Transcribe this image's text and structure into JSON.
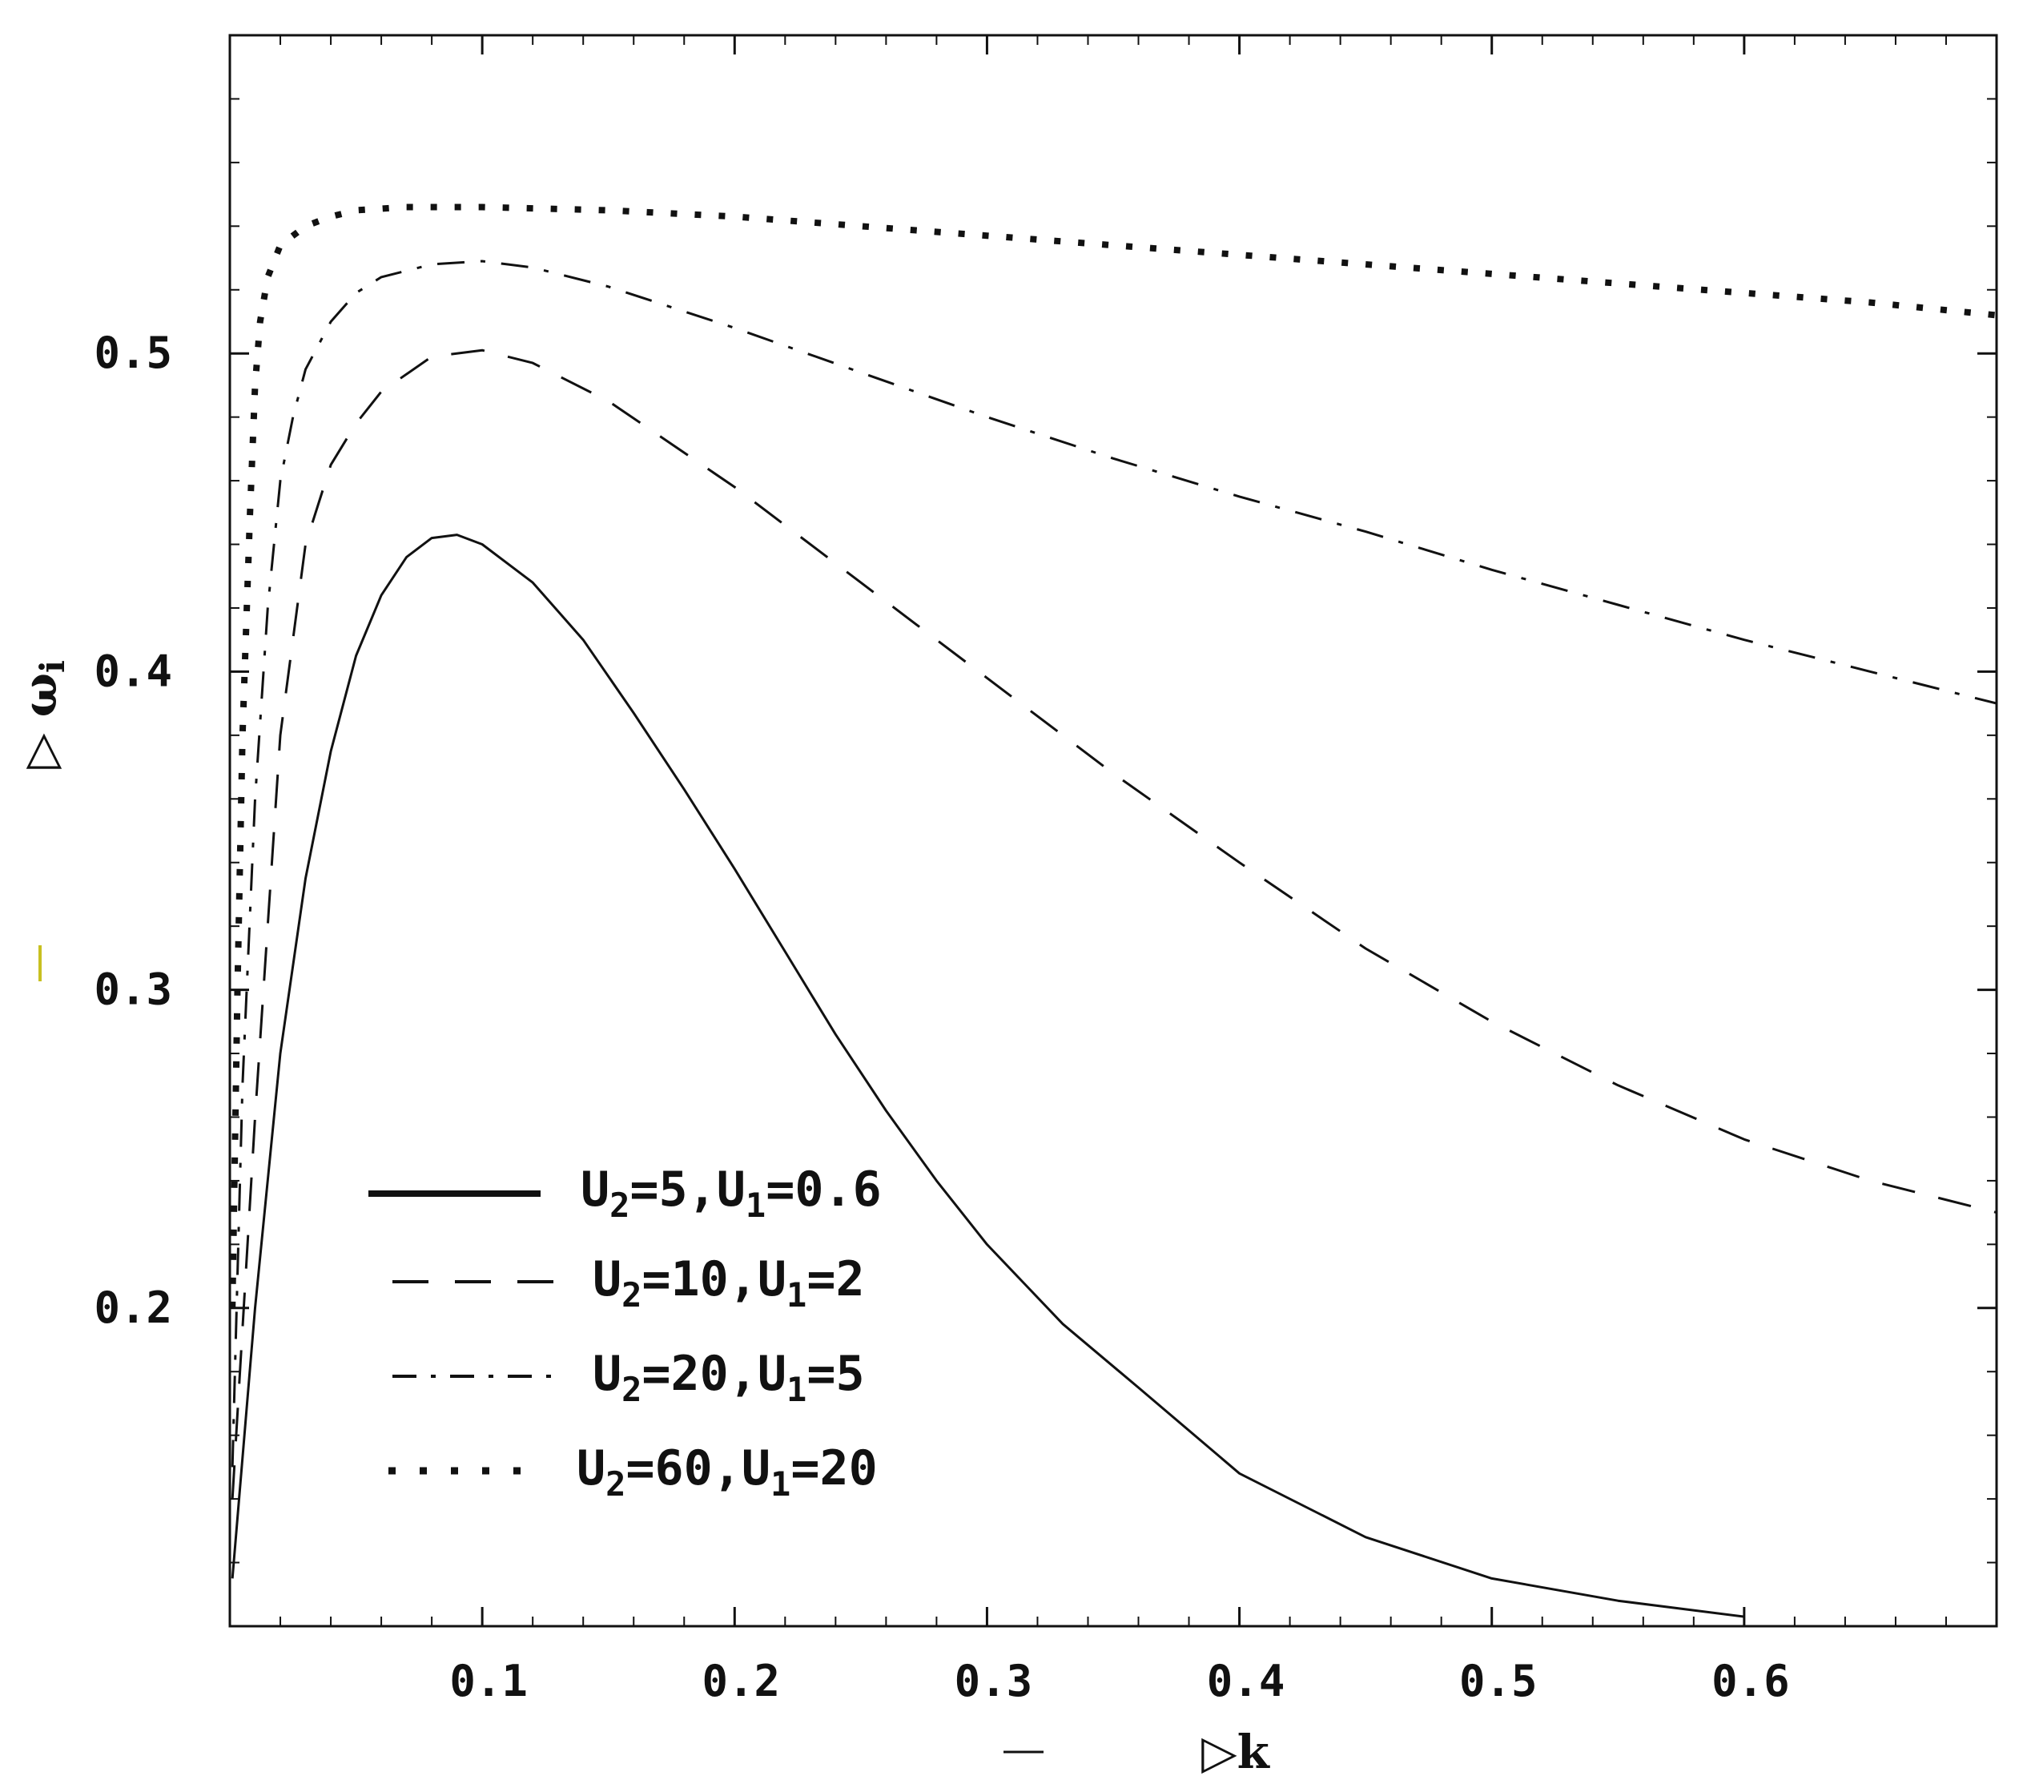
{
  "chart_data": {
    "type": "line",
    "title": "",
    "xlabel": "k",
    "ylabel": "ω",
    "ylabel_subscript": "i",
    "xlim": [
      0,
      0.7
    ],
    "ylim": [
      0.1,
      0.6
    ],
    "xticks": [
      {
        "value": 0.1,
        "label": "0.1"
      },
      {
        "value": 0.2,
        "label": "0.2"
      },
      {
        "value": 0.3,
        "label": "0.3"
      },
      {
        "value": 0.4,
        "label": "0.4"
      },
      {
        "value": 0.5,
        "label": "0.5"
      },
      {
        "value": 0.6,
        "label": "0.6"
      }
    ],
    "yticks": [
      {
        "value": 0.2,
        "label": "0.2"
      },
      {
        "value": 0.3,
        "label": "0.3"
      },
      {
        "value": 0.4,
        "label": "0.4"
      },
      {
        "value": 0.5,
        "label": "0.5"
      }
    ],
    "grid": false,
    "legend_position": "bottom-left",
    "series": [
      {
        "name": "U2=5,U1=0.6",
        "label_parts": {
          "a": "U",
          "a_sub": "2",
          "b": "=5,U",
          "b_sub": "1",
          "c": "=0.6"
        },
        "style": "solid",
        "x": [
          0.001,
          0.01,
          0.02,
          0.03,
          0.04,
          0.05,
          0.06,
          0.07,
          0.08,
          0.09,
          0.1,
          0.12,
          0.14,
          0.16,
          0.18,
          0.2,
          0.22,
          0.24,
          0.26,
          0.28,
          0.3,
          0.33,
          0.36,
          0.4,
          0.45,
          0.5,
          0.55,
          0.6
        ],
        "y": [
          0.115,
          0.2,
          0.28,
          0.335,
          0.375,
          0.405,
          0.424,
          0.436,
          0.442,
          0.443,
          0.44,
          0.428,
          0.41,
          0.387,
          0.363,
          0.338,
          0.312,
          0.286,
          0.262,
          0.24,
          0.22,
          0.195,
          0.175,
          0.148,
          0.128,
          0.115,
          0.108,
          0.103
        ]
      },
      {
        "name": "U2=10,U1=2",
        "label_parts": {
          "a": "U",
          "a_sub": "2",
          "b": "=10,U",
          "b_sub": "1",
          "c": "=2"
        },
        "style": "dashed",
        "x": [
          0.001,
          0.01,
          0.02,
          0.03,
          0.04,
          0.05,
          0.06,
          0.08,
          0.1,
          0.12,
          0.15,
          0.2,
          0.25,
          0.3,
          0.35,
          0.4,
          0.45,
          0.5,
          0.55,
          0.6,
          0.65,
          0.7
        ],
        "y": [
          0.14,
          0.26,
          0.38,
          0.44,
          0.465,
          0.478,
          0.488,
          0.499,
          0.501,
          0.497,
          0.485,
          0.458,
          0.428,
          0.398,
          0.368,
          0.34,
          0.313,
          0.29,
          0.27,
          0.253,
          0.24,
          0.23
        ]
      },
      {
        "name": "U2=20,U1=5",
        "label_parts": {
          "a": "U",
          "a_sub": "2",
          "b": "=20,U",
          "b_sub": "1",
          "c": "=5"
        },
        "style": "dashdot",
        "x": [
          0.001,
          0.005,
          0.01,
          0.015,
          0.02,
          0.025,
          0.03,
          0.04,
          0.05,
          0.06,
          0.08,
          0.1,
          0.12,
          0.15,
          0.2,
          0.25,
          0.3,
          0.35,
          0.4,
          0.45,
          0.5,
          0.55,
          0.6,
          0.65,
          0.7
        ],
        "y": [
          0.15,
          0.27,
          0.36,
          0.42,
          0.46,
          0.48,
          0.495,
          0.51,
          0.519,
          0.524,
          0.528,
          0.529,
          0.527,
          0.521,
          0.508,
          0.494,
          0.48,
          0.467,
          0.455,
          0.444,
          0.432,
          0.421,
          0.41,
          0.4,
          0.39
        ]
      },
      {
        "name": "U2=60,U1=20",
        "label_parts": {
          "a": "U",
          "a_sub": "2",
          "b": "=60,U",
          "b_sub": "1",
          "c": "=20"
        },
        "style": "dotted",
        "x": [
          0.001,
          0.003,
          0.005,
          0.008,
          0.01,
          0.012,
          0.015,
          0.02,
          0.03,
          0.04,
          0.05,
          0.07,
          0.1,
          0.15,
          0.2,
          0.25,
          0.3,
          0.35,
          0.4,
          0.45,
          0.5,
          0.55,
          0.6,
          0.65,
          0.7
        ],
        "y": [
          0.2,
          0.3,
          0.38,
          0.45,
          0.49,
          0.51,
          0.524,
          0.534,
          0.54,
          0.543,
          0.545,
          0.546,
          0.546,
          0.545,
          0.543,
          0.54,
          0.537,
          0.534,
          0.531,
          0.528,
          0.525,
          0.522,
          0.519,
          0.516,
          0.512
        ]
      }
    ]
  }
}
